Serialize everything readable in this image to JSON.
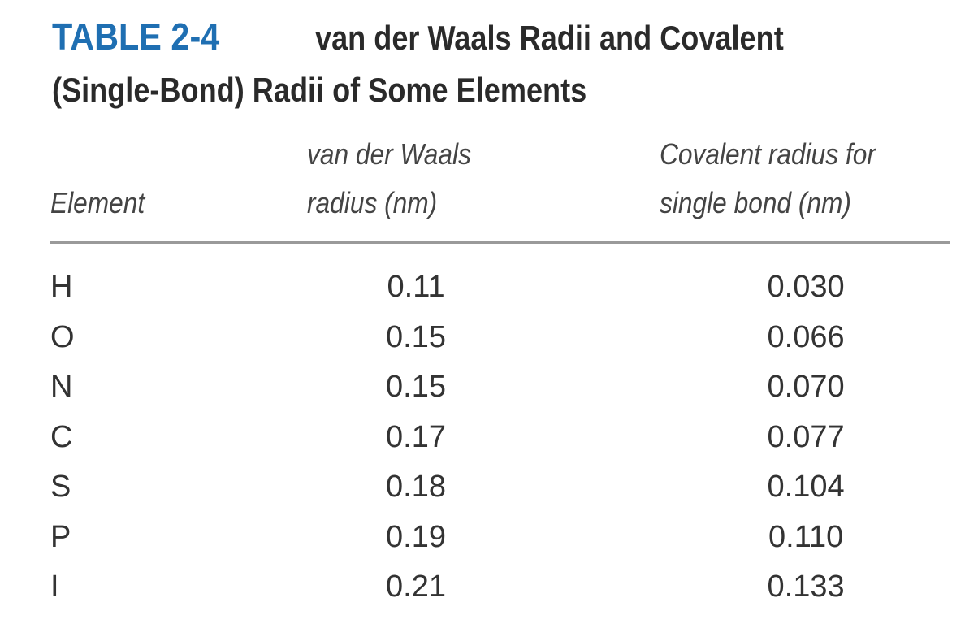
{
  "title": {
    "number": "TABLE 2-4",
    "lines": [
      "van der Waals Radii and Covalent",
      "(Single-Bond) Radii of Some Elements"
    ]
  },
  "table": {
    "headers": [
      [
        "Element"
      ],
      [
        "van der Waals",
        "radius (nm)"
      ],
      [
        "Covalent radius for",
        "single bond (nm)"
      ]
    ],
    "rows": [
      [
        "H",
        "0.11",
        "0.030"
      ],
      [
        "O",
        "0.15",
        "0.066"
      ],
      [
        "N",
        "0.15",
        "0.070"
      ],
      [
        "C",
        "0.17",
        "0.077"
      ],
      [
        "S",
        "0.18",
        "0.104"
      ],
      [
        "P",
        "0.19",
        "0.110"
      ],
      [
        "I",
        "0.21",
        "0.133"
      ]
    ]
  }
}
